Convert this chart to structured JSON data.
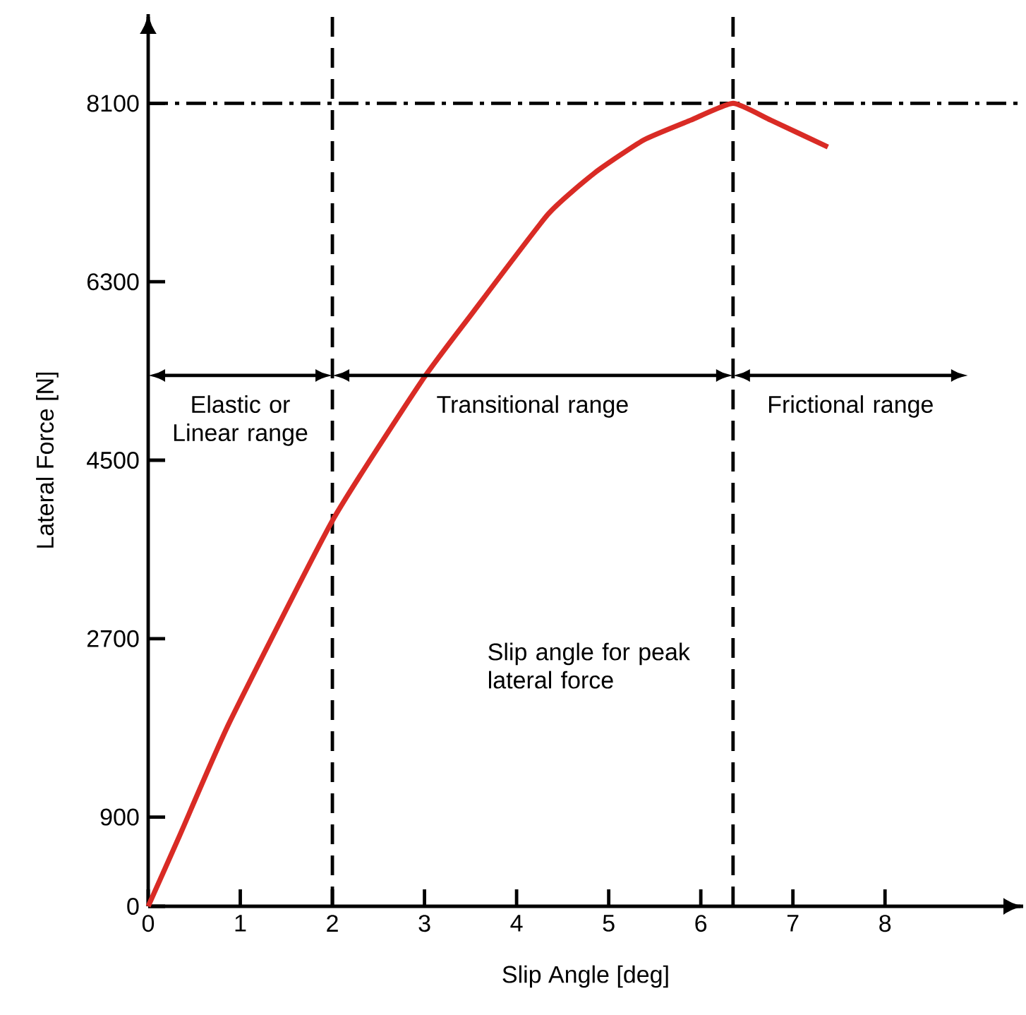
{
  "chart_data": {
    "type": "line",
    "xlabel": "Slip Angle [deg]",
    "ylabel": "Lateral Force [N]",
    "xlim": [
      0,
      9.5
    ],
    "ylim": [
      0,
      9000
    ],
    "xticks": [
      0,
      1,
      2,
      3,
      4,
      5,
      6,
      7,
      8
    ],
    "yticks": [
      0,
      900,
      2700,
      4500,
      6300,
      8100
    ],
    "x": [
      0,
      0.34,
      0.88,
      2,
      2.97,
      3.5,
      4.34,
      4.85,
      5.38,
      5.89,
      6.35,
      6.76,
      7.38
    ],
    "series": [
      {
        "color": "#d92b25",
        "values": [
          0,
          710,
          1850,
          3890,
          5300,
          5960,
          6980,
          7400,
          7730,
          7930,
          8100,
          7930,
          7660
        ]
      }
    ],
    "ref_lines": [
      {
        "axis": "x",
        "value": 2,
        "line_style": "dashed"
      },
      {
        "axis": "x",
        "value": 6.35,
        "line_style": "dashed",
        "label": "Slip angle for peak lateral force"
      },
      {
        "axis": "y",
        "value": 8100,
        "line_style": "dashdot"
      }
    ],
    "annotations": [
      "Elastic or Linear range",
      "Transitional range",
      "Frictional range"
    ],
    "grid": false,
    "marker": "none",
    "line_style": "solid"
  }
}
